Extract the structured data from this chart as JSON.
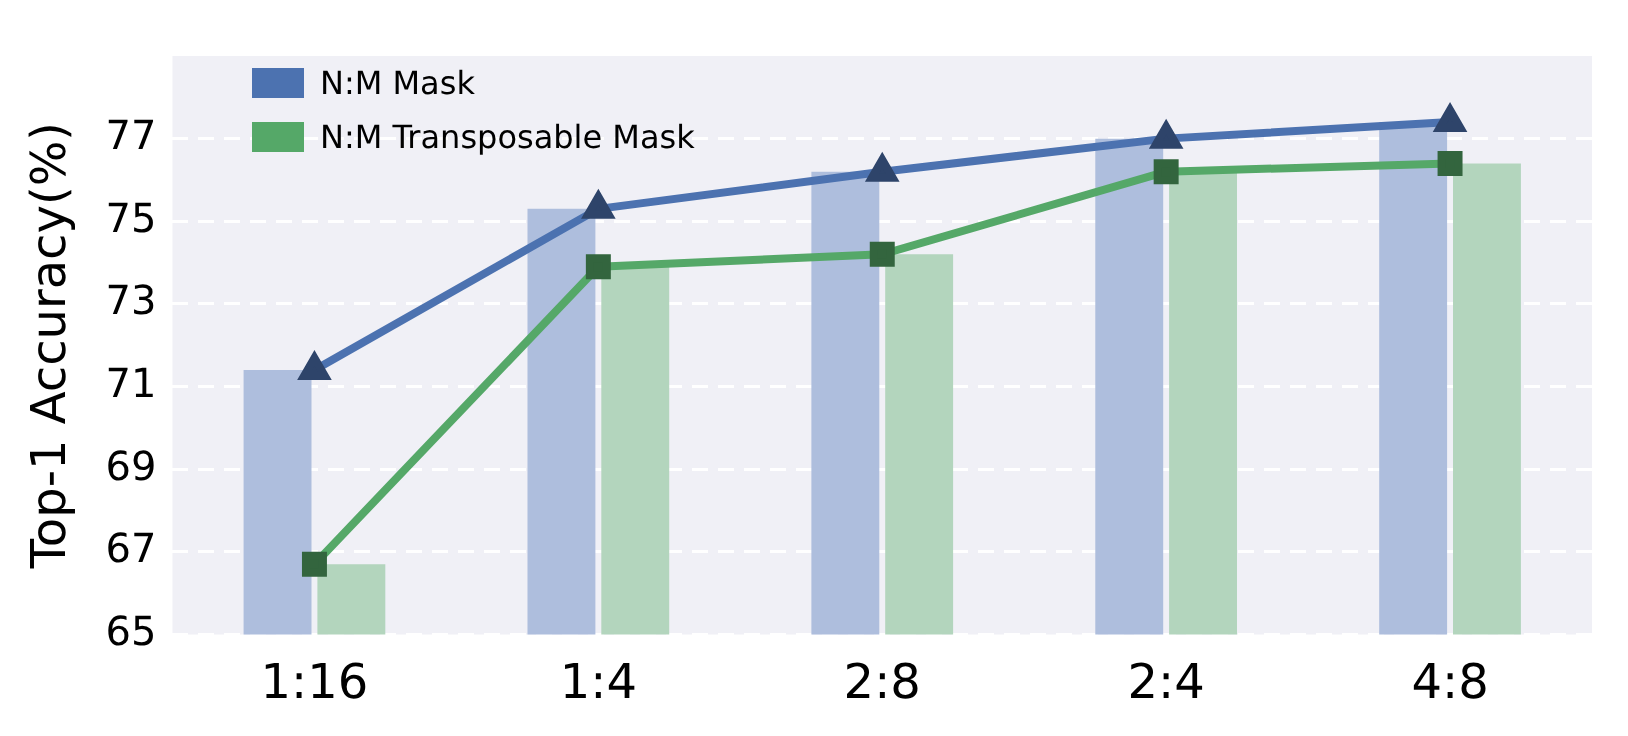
{
  "chart_data": {
    "type": "bar",
    "ylabel": "Top-1 Accuracy(%)",
    "categories": [
      "1:16",
      "1:4",
      "2:8",
      "2:4",
      "4:8"
    ],
    "series": [
      {
        "color": "#aebedd",
        "values": [
          71.4,
          75.3,
          76.2,
          77.0,
          77.4
        ]
      },
      {
        "color": "#b3d5bd",
        "values": [
          66.7,
          73.9,
          74.2,
          76.2,
          76.4
        ]
      },
      {
        "type": "line",
        "name": "N:M Mask",
        "color": "#4c72b0",
        "marker": "triangle",
        "values": [
          71.4,
          75.3,
          76.2,
          77.0,
          77.4
        ]
      },
      {
        "type": "line",
        "name": "N:M Transposable Mask",
        "color": "#55a868",
        "marker": "square",
        "values": [
          66.7,
          73.9,
          74.2,
          76.2,
          76.4
        ]
      }
    ],
    "ylim": [
      65,
      79
    ],
    "yticks": [
      65,
      67,
      69,
      71,
      73,
      75,
      77
    ],
    "grid": "y",
    "legend": "top left"
  }
}
